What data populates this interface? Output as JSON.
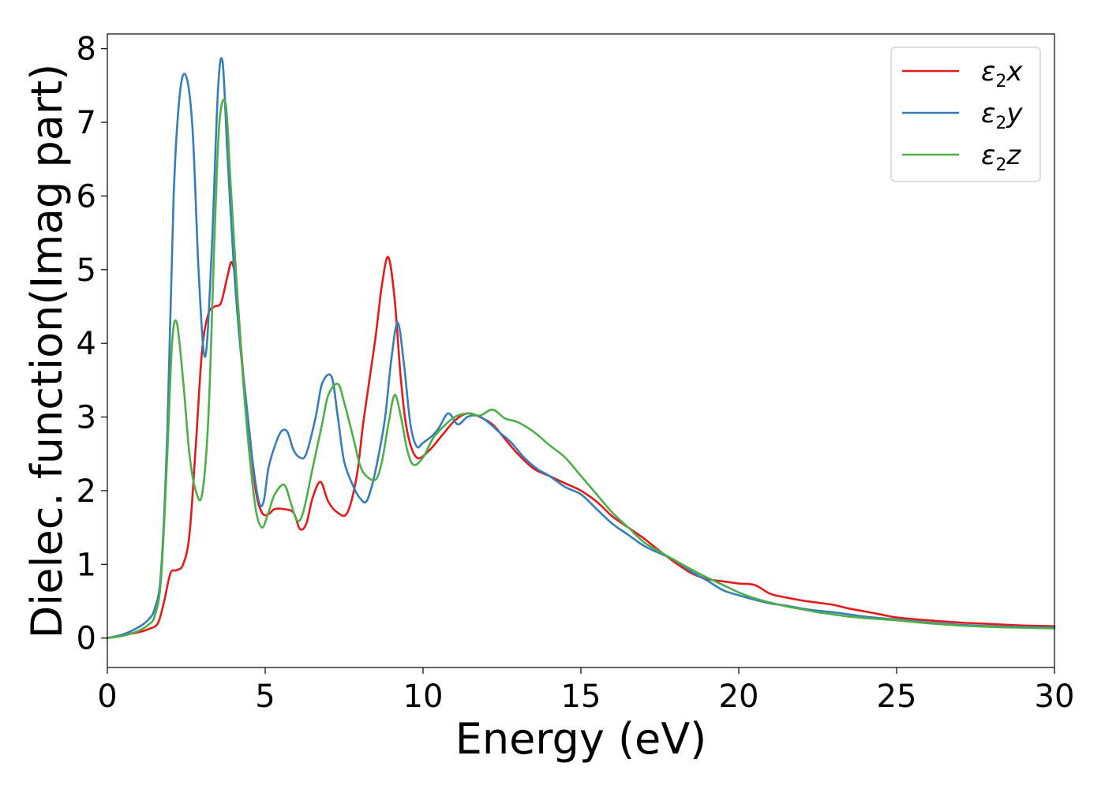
{
  "chart_data": {
    "type": "line",
    "xlabel": "Energy (eV)",
    "ylabel": "Dielec. function(Imag part)",
    "xlim": [
      0,
      30
    ],
    "ylim": [
      -0.4,
      8.2
    ],
    "xticks": [
      0,
      5,
      10,
      15,
      20,
      25,
      30
    ],
    "yticks": [
      0,
      1,
      2,
      3,
      4,
      5,
      6,
      7,
      8
    ],
    "grid": false,
    "legend_position": "top-right",
    "series": [
      {
        "name": "ε2x",
        "legend_base": "ε",
        "legend_sub": "2",
        "legend_var": "x",
        "color": "#e41a1c",
        "x": [
          0,
          0.5,
          1.0,
          1.3,
          1.6,
          1.8,
          2.0,
          2.2,
          2.4,
          2.6,
          2.8,
          3.0,
          3.2,
          3.4,
          3.6,
          3.8,
          3.95,
          4.1,
          4.3,
          4.5,
          4.7,
          4.9,
          5.1,
          5.3,
          5.6,
          5.9,
          6.1,
          6.3,
          6.5,
          6.75,
          7.0,
          7.3,
          7.6,
          7.9,
          8.1,
          8.3,
          8.5,
          8.7,
          8.9,
          9.1,
          9.3,
          9.5,
          9.8,
          10.2,
          10.6,
          11.0,
          11.4,
          11.8,
          12.2,
          12.6,
          13.0,
          13.5,
          14.0,
          14.5,
          15.0,
          15.5,
          16.0,
          16.5,
          17.0,
          17.5,
          18.0,
          18.5,
          19.0,
          19.5,
          20.0,
          20.5,
          21.0,
          21.5,
          22.0,
          22.5,
          23.0,
          23.5,
          24.0,
          24.5,
          25.0,
          26.0,
          27.0,
          28.0,
          29.0,
          30.0
        ],
        "y": [
          0,
          0.04,
          0.08,
          0.12,
          0.2,
          0.5,
          0.88,
          0.92,
          1.0,
          1.4,
          2.6,
          3.9,
          4.4,
          4.5,
          4.55,
          4.9,
          5.1,
          4.7,
          3.6,
          2.8,
          2.0,
          1.7,
          1.68,
          1.75,
          1.75,
          1.7,
          1.48,
          1.55,
          1.9,
          2.12,
          1.85,
          1.7,
          1.7,
          2.2,
          2.9,
          3.5,
          4.1,
          4.8,
          5.17,
          4.6,
          3.5,
          2.8,
          2.45,
          2.55,
          2.75,
          2.95,
          3.05,
          3.0,
          2.9,
          2.7,
          2.5,
          2.3,
          2.2,
          2.1,
          2.0,
          1.85,
          1.65,
          1.5,
          1.35,
          1.18,
          1.02,
          0.88,
          0.8,
          0.77,
          0.74,
          0.72,
          0.6,
          0.55,
          0.51,
          0.48,
          0.45,
          0.4,
          0.36,
          0.32,
          0.28,
          0.24,
          0.21,
          0.19,
          0.17,
          0.16
        ]
      },
      {
        "name": "ε2y",
        "legend_base": "ε",
        "legend_sub": "2",
        "legend_var": "y",
        "color": "#377eb8",
        "x": [
          0,
          0.5,
          1.0,
          1.3,
          1.5,
          1.7,
          1.9,
          2.1,
          2.3,
          2.5,
          2.7,
          2.9,
          3.1,
          3.3,
          3.5,
          3.65,
          3.8,
          4.0,
          4.2,
          4.4,
          4.6,
          4.8,
          4.95,
          5.1,
          5.3,
          5.5,
          5.7,
          5.9,
          6.1,
          6.3,
          6.6,
          6.8,
          7.1,
          7.3,
          7.5,
          7.8,
          8.0,
          8.2,
          8.4,
          8.6,
          8.8,
          9.0,
          9.2,
          9.4,
          9.6,
          9.8,
          10.0,
          10.3,
          10.5,
          10.8,
          11.1,
          11.4,
          11.7,
          12.0,
          12.4,
          12.8,
          13.2,
          13.6,
          14.0,
          14.5,
          15.0,
          15.5,
          16.0,
          16.5,
          17.0,
          17.5,
          18.0,
          18.5,
          19.0,
          19.5,
          20.0,
          20.5,
          21.0,
          21.5,
          22.0,
          22.5,
          23.0,
          23.5,
          24.0,
          25.0,
          26.0,
          27.0,
          28.0,
          29.0,
          30.0
        ],
        "y": [
          0,
          0.05,
          0.15,
          0.25,
          0.4,
          0.9,
          2.8,
          6.0,
          7.4,
          7.62,
          6.9,
          4.9,
          3.82,
          5.2,
          7.4,
          7.82,
          6.6,
          5.1,
          4.0,
          3.2,
          2.4,
          1.85,
          1.85,
          2.3,
          2.6,
          2.8,
          2.8,
          2.55,
          2.45,
          2.5,
          3.0,
          3.45,
          3.55,
          3.0,
          2.4,
          2.05,
          1.9,
          1.85,
          2.1,
          2.5,
          3.0,
          3.8,
          4.28,
          3.7,
          2.9,
          2.6,
          2.65,
          2.75,
          2.85,
          3.05,
          2.9,
          3.0,
          3.02,
          2.95,
          2.8,
          2.65,
          2.45,
          2.3,
          2.2,
          2.05,
          1.95,
          1.75,
          1.55,
          1.4,
          1.25,
          1.15,
          1.05,
          0.9,
          0.78,
          0.65,
          0.58,
          0.52,
          0.47,
          0.44,
          0.4,
          0.37,
          0.35,
          0.32,
          0.29,
          0.25,
          0.21,
          0.18,
          0.16,
          0.15,
          0.14
        ]
      },
      {
        "name": "ε2z",
        "legend_base": "ε",
        "legend_sub": "2",
        "legend_var": "z",
        "color": "#4daf4a",
        "x": [
          0,
          0.5,
          1.0,
          1.3,
          1.5,
          1.7,
          1.9,
          2.05,
          2.2,
          2.4,
          2.6,
          2.8,
          3.0,
          3.2,
          3.4,
          3.55,
          3.75,
          3.9,
          4.1,
          4.3,
          4.5,
          4.7,
          4.9,
          5.1,
          5.3,
          5.6,
          5.8,
          6.0,
          6.2,
          6.5,
          6.8,
          7.0,
          7.3,
          7.5,
          7.8,
          8.0,
          8.2,
          8.5,
          8.7,
          8.9,
          9.1,
          9.3,
          9.5,
          9.7,
          10.0,
          10.3,
          10.6,
          11.0,
          11.4,
          11.8,
          12.2,
          12.6,
          13.0,
          13.5,
          14.0,
          14.5,
          15.0,
          15.5,
          16.0,
          16.5,
          17.0,
          17.5,
          18.0,
          18.5,
          19.0,
          19.5,
          20.0,
          20.5,
          21.0,
          21.5,
          22.0,
          22.5,
          23.0,
          23.5,
          24.0,
          25.0,
          26.0,
          27.0,
          28.0,
          29.0,
          30.0
        ],
        "y": [
          0,
          0.03,
          0.1,
          0.18,
          0.3,
          0.8,
          2.5,
          4.0,
          4.28,
          3.5,
          2.5,
          2.0,
          1.95,
          3.0,
          5.5,
          7.0,
          7.25,
          6.2,
          4.8,
          3.5,
          2.5,
          1.75,
          1.5,
          1.7,
          1.95,
          2.08,
          1.85,
          1.6,
          1.7,
          2.3,
          2.9,
          3.3,
          3.45,
          3.2,
          2.7,
          2.35,
          2.2,
          2.15,
          2.4,
          2.9,
          3.3,
          3.0,
          2.55,
          2.35,
          2.45,
          2.7,
          2.85,
          3.0,
          3.05,
          3.02,
          3.1,
          2.98,
          2.93,
          2.8,
          2.62,
          2.45,
          2.2,
          1.95,
          1.7,
          1.5,
          1.3,
          1.17,
          1.05,
          0.93,
          0.82,
          0.72,
          0.62,
          0.54,
          0.48,
          0.43,
          0.39,
          0.35,
          0.32,
          0.29,
          0.27,
          0.24,
          0.2,
          0.17,
          0.15,
          0.14,
          0.13
        ]
      }
    ]
  }
}
